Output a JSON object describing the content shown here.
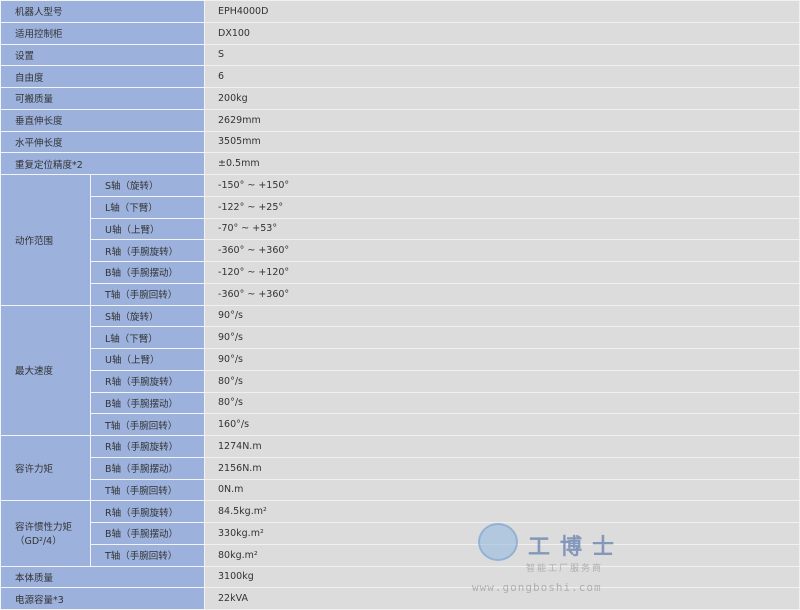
{
  "rows": [
    {
      "label": "机器人型号",
      "value": "EPH4000D"
    },
    {
      "label": "适用控制柜",
      "value": "DX100"
    },
    {
      "label": "设置",
      "value": "S"
    },
    {
      "label": "自由度",
      "value": "6"
    },
    {
      "label": "可搬质量",
      "value": "200kg"
    },
    {
      "label": "垂直伸长度",
      "value": "2629mm"
    },
    {
      "label": "水平伸长度",
      "value": "3505mm"
    },
    {
      "label": "重复定位精度*2",
      "value": "±0.5mm"
    }
  ],
  "groups": [
    {
      "label": "动作范围",
      "items": [
        {
          "axis": "S轴（旋转）",
          "value": "-150° ~ +150°"
        },
        {
          "axis": "L轴（下臂）",
          "value": "-122° ~ +25°"
        },
        {
          "axis": "U轴（上臂）",
          "value": "-70° ~ +53°"
        },
        {
          "axis": "R轴（手腕旋转）",
          "value": "-360° ~ +360°"
        },
        {
          "axis": "B轴（手腕摆动）",
          "value": "-120° ~ +120°"
        },
        {
          "axis": "T轴（手腕回转）",
          "value": "-360° ~ +360°"
        }
      ]
    },
    {
      "label": "最大速度",
      "items": [
        {
          "axis": "S轴（旋转）",
          "value": "90°/s"
        },
        {
          "axis": "L轴（下臂）",
          "value": "90°/s"
        },
        {
          "axis": "U轴（上臂）",
          "value": "90°/s"
        },
        {
          "axis": "R轴（手腕旋转）",
          "value": "80°/s"
        },
        {
          "axis": "B轴（手腕摆动）",
          "value": "80°/s"
        },
        {
          "axis": "T轴（手腕回转）",
          "value": "160°/s"
        }
      ]
    },
    {
      "label": "容许力矩",
      "items": [
        {
          "axis": "R轴（手腕旋转）",
          "value": "1274N.m"
        },
        {
          "axis": "B轴（手腕摆动）",
          "value": "2156N.m"
        },
        {
          "axis": "T轴（手腕回转）",
          "value": "0N.m"
        }
      ]
    },
    {
      "label": "容许惯性力矩（GD²/4）",
      "items": [
        {
          "axis": "R轴（手腕旋转）",
          "value": "84.5kg.m²"
        },
        {
          "axis": "B轴（手腕摆动）",
          "value": "330kg.m²"
        },
        {
          "axis": "T轴（手腕回转）",
          "value": "80kg.m²"
        }
      ]
    }
  ],
  "footer_rows": [
    {
      "label": "本体质量",
      "value": "3100kg"
    },
    {
      "label": "电源容量*3",
      "value": "22kVA"
    }
  ],
  "watermark": {
    "brand": "工博士",
    "slogan": "智能工厂服务商",
    "url": "www.gongboshi.com"
  },
  "colors": {
    "label_bg": "#9cb1dc",
    "value_bg": "#dcdcdc"
  }
}
